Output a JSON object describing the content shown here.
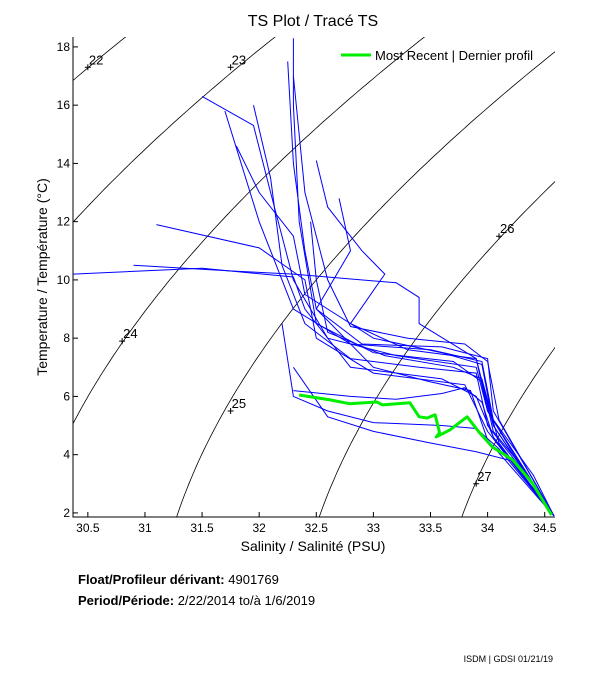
{
  "chart_data": {
    "type": "line",
    "title": "TS Plot / Tracé TS",
    "xlabel": "Salinity / Salinité (PSU)",
    "ylabel": "Temperature / Température (°C)",
    "xlim": [
      30.37,
      34.59
    ],
    "ylim": [
      1.86,
      18.34
    ],
    "xticks": [
      30.5,
      31,
      31.5,
      32,
      32.5,
      33,
      33.5,
      34,
      34.5
    ],
    "yticks": [
      2,
      4,
      6,
      8,
      10,
      12,
      14,
      16,
      18
    ],
    "grid": false,
    "legend": {
      "placement": "top-right",
      "entries": [
        "Most Recent | Dernier profil"
      ]
    },
    "colors": {
      "profiles": "#0000ff",
      "most_recent": "#00ee00",
      "isopycnals": "#000000"
    },
    "isopycnals": [
      {
        "sigma": 22,
        "label": "22",
        "label_at": [
          30.5,
          17.3
        ]
      },
      {
        "sigma": 23,
        "label": "23",
        "label_at": [
          31.75,
          17.3
        ]
      },
      {
        "sigma": 24,
        "label": "24",
        "label_at": [
          30.8,
          7.9
        ]
      },
      {
        "sigma": 25,
        "label": "25",
        "label_at": [
          31.75,
          5.5
        ]
      },
      {
        "sigma": 26,
        "label": "26",
        "label_at": [
          34.1,
          11.5
        ]
      },
      {
        "sigma": 27,
        "label": "27",
        "label_at": [
          33.9,
          3.0
        ]
      }
    ],
    "profiles": [
      [
        [
          32.3,
          18.3
        ],
        [
          32.3,
          16
        ],
        [
          32.35,
          12
        ],
        [
          32.5,
          8.5
        ],
        [
          33,
          7.5
        ],
        [
          33.7,
          7.2
        ],
        [
          33.95,
          6.5
        ],
        [
          34.05,
          4.8
        ],
        [
          34.3,
          3.6
        ],
        [
          34.58,
          1.9
        ]
      ],
      [
        [
          31.5,
          16.3
        ],
        [
          31.95,
          15.3
        ],
        [
          32.1,
          13
        ],
        [
          32.3,
          10
        ],
        [
          32.6,
          8
        ],
        [
          33.2,
          7.4
        ],
        [
          33.9,
          7
        ],
        [
          34.0,
          5.5
        ],
        [
          34.2,
          4.2
        ],
        [
          34.58,
          1.9
        ]
      ],
      [
        [
          31.7,
          15.8
        ],
        [
          32.0,
          12
        ],
        [
          32.3,
          9
        ],
        [
          32.8,
          7.8
        ],
        [
          33.5,
          7.6
        ],
        [
          33.95,
          7.2
        ],
        [
          34.05,
          5.2
        ],
        [
          34.4,
          3.3
        ],
        [
          34.58,
          1.9
        ]
      ],
      [
        [
          30.37,
          10.2
        ],
        [
          31.5,
          10.4
        ],
        [
          32.3,
          10.1
        ],
        [
          32.4,
          9
        ],
        [
          32.8,
          7
        ],
        [
          33.6,
          6.6
        ],
        [
          33.9,
          6
        ],
        [
          34.05,
          4.6
        ],
        [
          34.58,
          1.9
        ]
      ],
      [
        [
          31.1,
          11.9
        ],
        [
          32.0,
          11.1
        ],
        [
          32.4,
          10
        ],
        [
          32.5,
          8
        ],
        [
          33.0,
          6.8
        ],
        [
          33.8,
          6.4
        ],
        [
          34.0,
          4.8
        ],
        [
          34.58,
          1.9
        ]
      ],
      [
        [
          32.5,
          14.1
        ],
        [
          32.6,
          12.5
        ],
        [
          32.9,
          11
        ],
        [
          33.1,
          10.2
        ],
        [
          32.8,
          8.5
        ],
        [
          33.3,
          7.6
        ],
        [
          33.9,
          7.3
        ],
        [
          34.05,
          5
        ],
        [
          34.58,
          1.9
        ]
      ],
      [
        [
          32.25,
          17.5
        ],
        [
          32.3,
          14
        ],
        [
          32.4,
          11
        ],
        [
          32.5,
          9
        ],
        [
          33.0,
          7
        ],
        [
          33.5,
          6.5
        ],
        [
          33.85,
          6.2
        ],
        [
          34.0,
          4.5
        ],
        [
          34.58,
          1.9
        ]
      ],
      [
        [
          31.95,
          16
        ],
        [
          32.1,
          13.5
        ],
        [
          32.2,
          10.5
        ],
        [
          32.4,
          8.5
        ],
        [
          32.8,
          7.3
        ],
        [
          33.4,
          7.0
        ],
        [
          33.9,
          6.8
        ],
        [
          34.0,
          5.0
        ],
        [
          34.3,
          3.5
        ],
        [
          34.58,
          1.9
        ]
      ],
      [
        [
          32.2,
          8.5
        ],
        [
          32.3,
          6
        ],
        [
          32.6,
          5.5
        ],
        [
          33.0,
          5.1
        ],
        [
          33.6,
          5.0
        ],
        [
          33.9,
          4.9
        ],
        [
          34.1,
          4.2
        ],
        [
          34.58,
          1.9
        ]
      ],
      [
        [
          32.3,
          7
        ],
        [
          32.6,
          5.3
        ],
        [
          33.0,
          4.8
        ],
        [
          33.5,
          4.4
        ],
        [
          33.9,
          4.1
        ],
        [
          34.2,
          3.8
        ],
        [
          34.58,
          1.9
        ]
      ],
      [
        [
          32.7,
          12.8
        ],
        [
          32.8,
          11
        ],
        [
          32.5,
          9
        ],
        [
          32.9,
          7.8
        ],
        [
          33.6,
          7.7
        ],
        [
          34.0,
          7.3
        ],
        [
          34.05,
          5.5
        ],
        [
          34.3,
          3.8
        ],
        [
          34.58,
          1.9
        ]
      ],
      [
        [
          31.8,
          14.6
        ],
        [
          32.0,
          13
        ],
        [
          32.3,
          11.5
        ],
        [
          32.4,
          9.5
        ],
        [
          33,
          8
        ],
        [
          33.6,
          7.5
        ],
        [
          33.95,
          7.1
        ],
        [
          34.05,
          5
        ],
        [
          34.58,
          1.9
        ]
      ],
      [
        [
          32.45,
          12
        ],
        [
          32.5,
          10
        ],
        [
          32.6,
          8.2
        ],
        [
          33.1,
          7.4
        ],
        [
          33.7,
          7.0
        ],
        [
          33.95,
          6.6
        ],
        [
          34.1,
          4.4
        ],
        [
          34.58,
          1.9
        ]
      ],
      [
        [
          32.3,
          6.2
        ],
        [
          32.8,
          6.0
        ],
        [
          33.2,
          5.9
        ],
        [
          33.6,
          6.1
        ],
        [
          33.8,
          6.3
        ],
        [
          33.95,
          5.8
        ],
        [
          34.05,
          4.6
        ],
        [
          34.58,
          1.9
        ]
      ],
      [
        [
          30.9,
          10.5
        ],
        [
          31.8,
          10.3
        ],
        [
          32.3,
          10.2
        ],
        [
          33.2,
          9.9
        ],
        [
          33.4,
          9.4
        ],
        [
          33.4,
          8.5
        ],
        [
          33.9,
          7.3
        ],
        [
          34.0,
          5.5
        ],
        [
          34.58,
          1.9
        ]
      ],
      [
        [
          32.3,
          17
        ],
        [
          32.4,
          13
        ],
        [
          32.6,
          10
        ],
        [
          32.8,
          8.4
        ],
        [
          33.3,
          8
        ],
        [
          33.8,
          7.8
        ],
        [
          34.0,
          7.2
        ],
        [
          34.1,
          5.2
        ],
        [
          34.58,
          1.9
        ]
      ]
    ],
    "most_recent": [
      [
        32.35,
        6.05
      ],
      [
        32.62,
        5.88
      ],
      [
        32.79,
        5.75
      ],
      [
        33.03,
        5.81
      ],
      [
        33.08,
        5.71
      ],
      [
        33.32,
        5.78
      ],
      [
        33.4,
        5.3
      ],
      [
        33.47,
        5.26
      ],
      [
        33.54,
        5.37
      ],
      [
        33.58,
        4.75
      ],
      [
        33.55,
        4.61
      ],
      [
        33.67,
        4.85
      ],
      [
        33.82,
        5.3
      ],
      [
        33.93,
        4.75
      ],
      [
        34.04,
        4.27
      ],
      [
        34.22,
        3.82
      ],
      [
        34.39,
        3.03
      ],
      [
        34.56,
        1.93
      ]
    ]
  },
  "info": {
    "float_label": "Float/Profileur dérivant:",
    "float_id": "4901769",
    "period_label": "Period/Période:",
    "period_start": "2/22/2014",
    "period_sep": "to/à",
    "period_end": "1/6/2019"
  },
  "footer": "ISDM | GDSI  01/21/19"
}
